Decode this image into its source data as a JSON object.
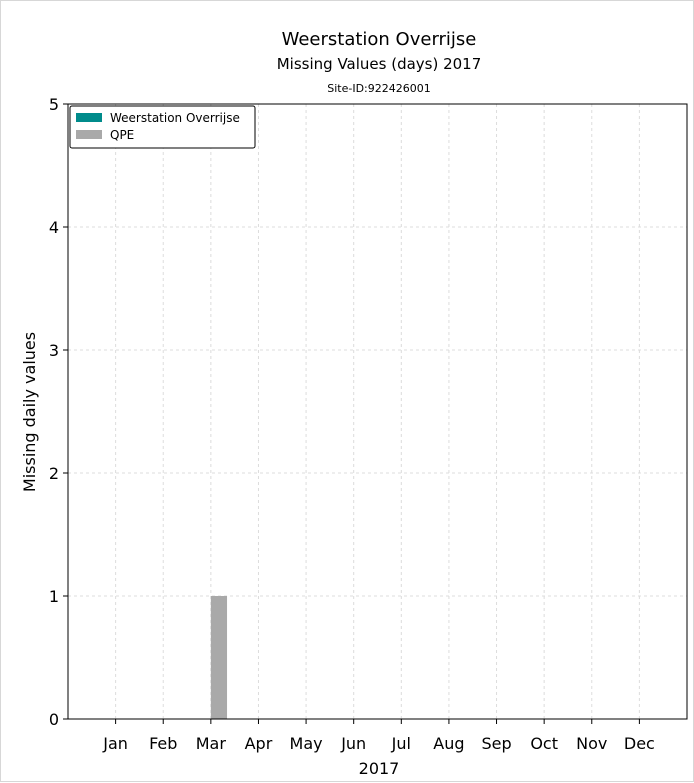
{
  "chart_data": {
    "type": "bar",
    "title": "Weerstation Overrijse",
    "subtitle": "Missing Values (days) 2017",
    "site_label": "Site-ID:922426001",
    "xlabel": "2017",
    "ylabel": "Missing daily values",
    "categories": [
      "Jan",
      "Feb",
      "Mar",
      "Apr",
      "May",
      "Jun",
      "Jul",
      "Aug",
      "Sep",
      "Oct",
      "Nov",
      "Dec"
    ],
    "series": [
      {
        "name": "Weerstation Overrijse",
        "color": "#008b8b",
        "values": [
          0,
          0,
          0,
          0,
          0,
          0,
          0,
          0,
          0,
          0,
          0,
          0
        ]
      },
      {
        "name": "QPE",
        "color": "#a9a9a9",
        "values": [
          0,
          0,
          1,
          0,
          0,
          0,
          0,
          0,
          0,
          0,
          0,
          0
        ]
      }
    ],
    "ylim": [
      0,
      5
    ],
    "yticks": [
      0,
      1,
      2,
      3,
      4,
      5
    ],
    "grid": true,
    "legend_position": "top-left"
  }
}
